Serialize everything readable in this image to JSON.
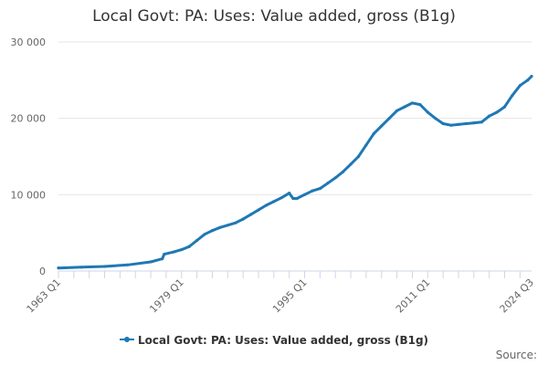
{
  "chart_data": {
    "type": "line",
    "title": "Local Govt: PA: Uses: Value added, gross (B1g)",
    "xlabel": "",
    "ylabel": "",
    "x_tick_labels": [
      "1963 Q1",
      "1979 Q1",
      "1995 Q1",
      "2011 Q1",
      "2024 Q3"
    ],
    "y_tick_labels": [
      "0",
      "10 000",
      "20 000",
      "30 000"
    ],
    "y_ticks": [
      0,
      10000,
      20000,
      30000
    ],
    "ylim": [
      0,
      30000
    ],
    "xlim": [
      1963.0,
      2024.5
    ],
    "grid": "horizontal",
    "legend_position": "bottom",
    "series": [
      {
        "name": "Local Govt: PA: Uses: Value added, gross (B1g)",
        "color": "#1f78b4",
        "x": [
          1963.0,
          1966.0,
          1969.0,
          1972.0,
          1975.0,
          1976.5,
          1976.75,
          1978.0,
          1979.0,
          1980.0,
          1981.0,
          1982.0,
          1983.0,
          1984.0,
          1985.0,
          1986.0,
          1987.0,
          1988.0,
          1989.0,
          1990.0,
          1991.0,
          1992.0,
          1993.0,
          1993.5,
          1994.0,
          1995.0,
          1996.0,
          1997.0,
          1998.0,
          1999.0,
          2000.0,
          2001.0,
          2002.0,
          2003.0,
          2004.0,
          2005.0,
          2006.0,
          2007.0,
          2008.0,
          2009.0,
          2010.0,
          2011.0,
          2012.0,
          2013.0,
          2014.0,
          2015.0,
          2016.0,
          2017.0,
          2018.0,
          2019.0,
          2020.0,
          2021.0,
          2022.0,
          2023.0,
          2024.0,
          2024.5
        ],
        "values": [
          400,
          500,
          600,
          800,
          1200,
          1600,
          2200,
          2500,
          2800,
          3200,
          4000,
          4800,
          5300,
          5700,
          6000,
          6300,
          6800,
          7400,
          8000,
          8600,
          9100,
          9600,
          10200,
          9500,
          9500,
          10000,
          10500,
          10800,
          11500,
          12200,
          13000,
          14000,
          15000,
          16500,
          18000,
          19000,
          20000,
          21000,
          21500,
          22000,
          21800,
          20800,
          20000,
          19300,
          19100,
          19200,
          19300,
          19400,
          19500,
          20300,
          20800,
          21500,
          23000,
          24300,
          25000,
          25500
        ]
      }
    ]
  },
  "source_label": "Source:"
}
